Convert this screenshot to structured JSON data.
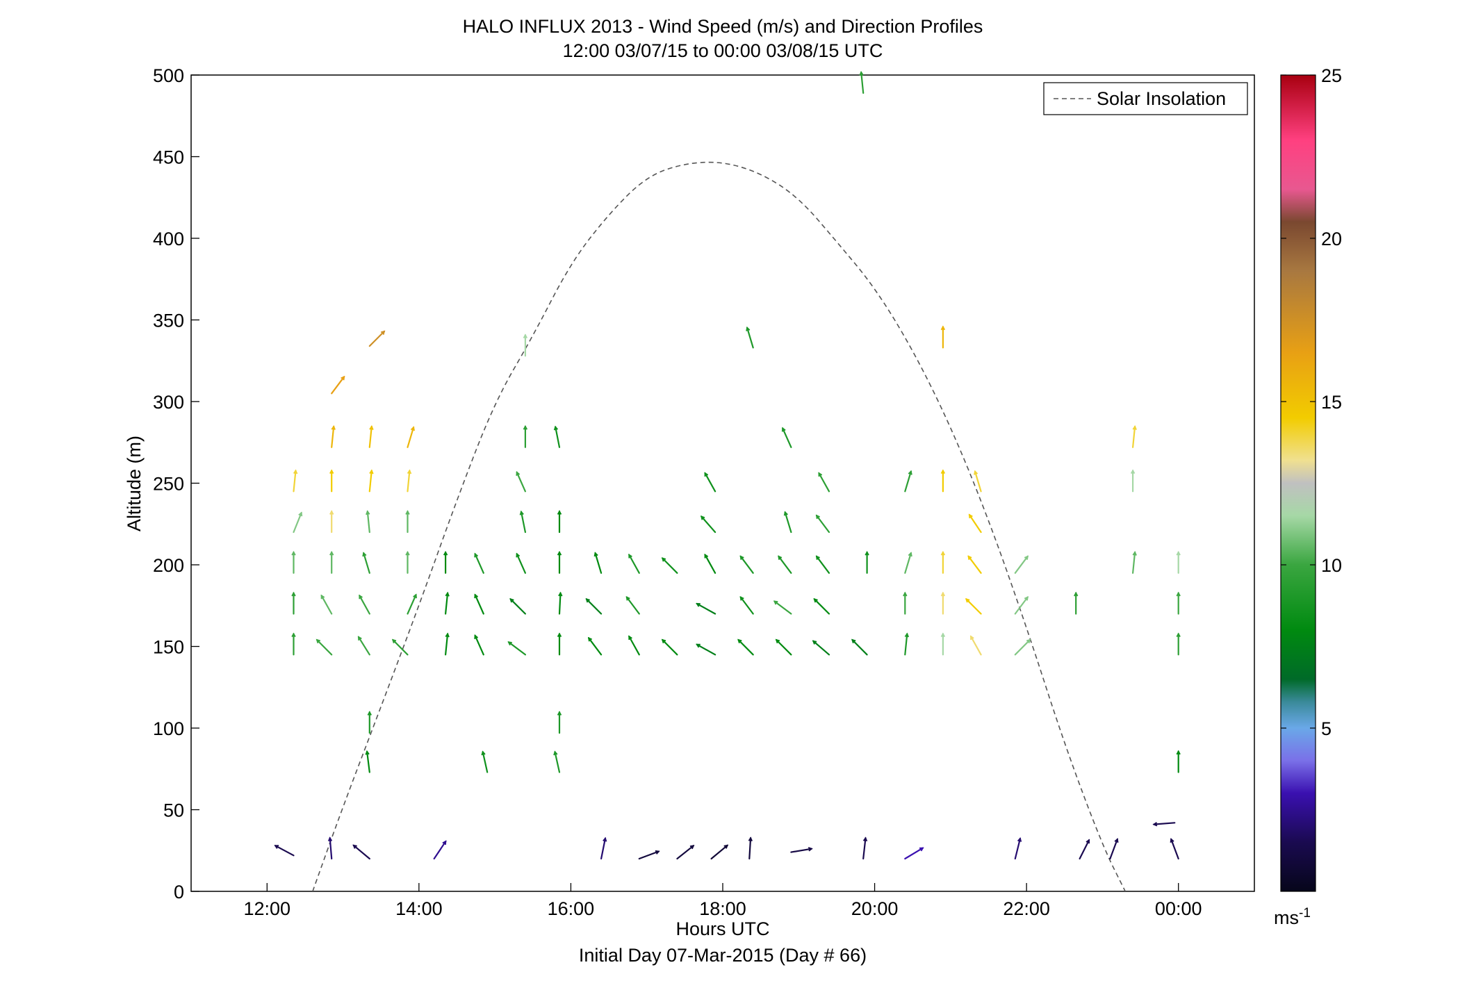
{
  "chart_data": {
    "type": "quiver",
    "title": "HALO INFLUX 2013 - Wind Speed (m/s) and Direction Profiles",
    "subtitle": "12:00 03/07/15 to 00:00 03/08/15  UTC",
    "xlabel": "Hours UTC",
    "xlabel2": "Initial Day 07-Mar-2015 (Day # 66)",
    "ylabel": "Altitude (m)",
    "xlim": [
      11,
      25
    ],
    "ylim": [
      0,
      500
    ],
    "x_ticks": [
      12,
      14,
      16,
      18,
      20,
      22,
      24
    ],
    "x_tick_labels": [
      "12:00",
      "14:00",
      "16:00",
      "18:00",
      "20:00",
      "22:00",
      "00:00"
    ],
    "y_ticks": [
      0,
      50,
      100,
      150,
      200,
      250,
      300,
      350,
      400,
      450,
      500
    ],
    "y_tick_labels": [
      "0",
      "50",
      "100",
      "150",
      "200",
      "250",
      "300",
      "350",
      "400",
      "450",
      "500"
    ],
    "grid": false,
    "legend": {
      "position": "top-right",
      "entries": [
        "Solar Insolation"
      ]
    },
    "colorbar": {
      "range": [
        0,
        25
      ],
      "ticks": [
        5,
        10,
        15,
        20,
        25
      ],
      "tick_labels": [
        "5",
        "10",
        "15",
        "20",
        "25"
      ],
      "unit_label": "ms",
      "unit_exponent": "-1",
      "stops": [
        [
          0,
          "#06061a"
        ],
        [
          1.5,
          "#1a0a50"
        ],
        [
          3,
          "#3a10b0"
        ],
        [
          4,
          "#7a70e8"
        ],
        [
          5,
          "#6aa8e8"
        ],
        [
          5.8,
          "#3a8a9a"
        ],
        [
          6.5,
          "#006a28"
        ],
        [
          8,
          "#008a10"
        ],
        [
          10,
          "#3aa640"
        ],
        [
          11.5,
          "#a6d8a6"
        ],
        [
          12.5,
          "#c0c0c0"
        ],
        [
          13.2,
          "#f0e090"
        ],
        [
          14.5,
          "#f2cc00"
        ],
        [
          16.5,
          "#e8a014"
        ],
        [
          19,
          "#a87840"
        ],
        [
          20.5,
          "#7a4830"
        ],
        [
          21.5,
          "#e85890"
        ],
        [
          23,
          "#ff4080"
        ],
        [
          25,
          "#a80010"
        ]
      ]
    },
    "solar_insolation": {
      "style": "dashed",
      "color": "#555555",
      "x": [
        12.6,
        13.0,
        13.5,
        14.0,
        14.5,
        15.0,
        15.5,
        16.0,
        16.5,
        17.0,
        17.5,
        18.0,
        18.5,
        19.0,
        19.5,
        20.0,
        20.5,
        21.0,
        21.5,
        22.0,
        22.5,
        23.0,
        23.3
      ],
      "y": [
        0,
        52,
        113,
        175,
        240,
        300,
        340,
        385,
        415,
        438,
        446,
        447,
        440,
        425,
        398,
        370,
        332,
        285,
        228,
        162,
        90,
        28,
        0
      ]
    },
    "vectors": [
      {
        "t": 12.35,
        "z": 22,
        "u": -1.5,
        "v": 0.8,
        "s": 1.5
      },
      {
        "t": 12.85,
        "z": 20,
        "u": -0.1,
        "v": 1.2,
        "s": 2.0
      },
      {
        "t": 13.35,
        "z": 20,
        "u": -1.2,
        "v": 1.0,
        "s": 1.5
      },
      {
        "t": 14.2,
        "z": 20,
        "u": 0.6,
        "v": 0.9,
        "s": 2.5
      },
      {
        "t": 16.4,
        "z": 20,
        "u": 0.2,
        "v": 1.0,
        "s": 2.0
      },
      {
        "t": 16.9,
        "z": 20,
        "u": 0.8,
        "v": 0.3,
        "s": 1.0
      },
      {
        "t": 17.4,
        "z": 20,
        "u": 0.5,
        "v": 0.4,
        "s": 1.0
      },
      {
        "t": 17.85,
        "z": 20,
        "u": 0.6,
        "v": 0.5,
        "s": 0.8
      },
      {
        "t": 18.35,
        "z": 20,
        "u": 0.05,
        "v": 0.8,
        "s": 1.0
      },
      {
        "t": 18.9,
        "z": 24,
        "u": 1.2,
        "v": 0.2,
        "s": 1.2
      },
      {
        "t": 19.85,
        "z": 20,
        "u": 0.1,
        "v": 0.9,
        "s": 1.5
      },
      {
        "t": 20.4,
        "z": 20,
        "u": 1.0,
        "v": 0.6,
        "s": 3.0
      },
      {
        "t": 21.85,
        "z": 20,
        "u": 0.2,
        "v": 0.8,
        "s": 2.0
      },
      {
        "t": 22.7,
        "z": 20,
        "u": 0.4,
        "v": 0.8,
        "s": 1.5
      },
      {
        "t": 23.1,
        "z": 20,
        "u": 0.3,
        "v": 0.8,
        "s": 1.5
      },
      {
        "t": 23.95,
        "z": 42,
        "u": -1.3,
        "v": -0.1,
        "s": 1.5
      },
      {
        "t": 24.0,
        "z": 20,
        "u": -0.3,
        "v": 0.8,
        "s": 1.5
      },
      {
        "t": 13.35,
        "z": 73,
        "u": -0.1,
        "v": 0.8,
        "s": 8.0
      },
      {
        "t": 14.9,
        "z": 73,
        "u": -0.2,
        "v": 0.9,
        "s": 8.5
      },
      {
        "t": 15.85,
        "z": 73,
        "u": -0.2,
        "v": 0.9,
        "s": 9.0
      },
      {
        "t": 24.0,
        "z": 73,
        "u": 0,
        "v": 1.0,
        "s": 8.0
      },
      {
        "t": 13.35,
        "z": 97,
        "u": 0,
        "v": 1.0,
        "s": 9.0
      },
      {
        "t": 15.85,
        "z": 97,
        "u": 0,
        "v": 1.0,
        "s": 9.0
      },
      {
        "t": 12.35,
        "z": 145,
        "u": 0,
        "v": 1.0,
        "s": 9.5
      },
      {
        "t": 12.85,
        "z": 145,
        "u": -0.7,
        "v": 0.7,
        "s": 10.0
      },
      {
        "t": 13.35,
        "z": 145,
        "u": -0.5,
        "v": 0.8,
        "s": 10.0
      },
      {
        "t": 13.85,
        "z": 145,
        "u": -0.7,
        "v": 0.7,
        "s": 9.5
      },
      {
        "t": 14.35,
        "z": 145,
        "u": 0.1,
        "v": 1.0,
        "s": 8.0
      },
      {
        "t": 14.85,
        "z": 145,
        "u": -0.4,
        "v": 0.9,
        "s": 8.0
      },
      {
        "t": 15.4,
        "z": 145,
        "u": -0.8,
        "v": 0.6,
        "s": 9.0
      },
      {
        "t": 15.85,
        "z": 145,
        "u": 0,
        "v": 1.0,
        "s": 8.0
      },
      {
        "t": 16.4,
        "z": 145,
        "u": -0.6,
        "v": 0.8,
        "s": 8.0
      },
      {
        "t": 16.9,
        "z": 145,
        "u": -0.5,
        "v": 0.9,
        "s": 8.0
      },
      {
        "t": 17.4,
        "z": 145,
        "u": -0.7,
        "v": 0.7,
        "s": 8.0
      },
      {
        "t": 17.9,
        "z": 145,
        "u": -0.9,
        "v": 0.5,
        "s": 7.5
      },
      {
        "t": 18.4,
        "z": 145,
        "u": -0.7,
        "v": 0.7,
        "s": 8.0
      },
      {
        "t": 18.9,
        "z": 145,
        "u": -0.7,
        "v": 0.7,
        "s": 8.0
      },
      {
        "t": 19.4,
        "z": 145,
        "u": -0.7,
        "v": 0.6,
        "s": 7.5
      },
      {
        "t": 19.9,
        "z": 145,
        "u": -0.7,
        "v": 0.7,
        "s": 7.5
      },
      {
        "t": 20.4,
        "z": 145,
        "u": 0.1,
        "v": 1.0,
        "s": 9.0
      },
      {
        "t": 20.9,
        "z": 145,
        "u": 0,
        "v": 1.0,
        "s": 11.5
      },
      {
        "t": 21.4,
        "z": 145,
        "u": -0.5,
        "v": 0.9,
        "s": 13.5
      },
      {
        "t": 21.85,
        "z": 145,
        "u": 0.7,
        "v": 0.7,
        "s": 11.0
      },
      {
        "t": 24.0,
        "z": 145,
        "u": 0,
        "v": 1.0,
        "s": 9.5
      },
      {
        "t": 12.35,
        "z": 170,
        "u": 0,
        "v": 1.0,
        "s": 9.5
      },
      {
        "t": 12.85,
        "z": 170,
        "u": -0.5,
        "v": 0.9,
        "s": 10.5
      },
      {
        "t": 13.35,
        "z": 170,
        "u": -0.5,
        "v": 0.9,
        "s": 10.0
      },
      {
        "t": 13.85,
        "z": 170,
        "u": 0.4,
        "v": 0.9,
        "s": 9.5
      },
      {
        "t": 14.35,
        "z": 170,
        "u": 0.1,
        "v": 1.0,
        "s": 8.0
      },
      {
        "t": 14.85,
        "z": 170,
        "u": -0.4,
        "v": 0.9,
        "s": 8.0
      },
      {
        "t": 15.4,
        "z": 170,
        "u": -0.7,
        "v": 0.7,
        "s": 7.5
      },
      {
        "t": 15.85,
        "z": 170,
        "u": 0.05,
        "v": 1.0,
        "s": 8.0
      },
      {
        "t": 16.4,
        "z": 170,
        "u": -0.7,
        "v": 0.7,
        "s": 7.5
      },
      {
        "t": 16.9,
        "z": 170,
        "u": -0.6,
        "v": 0.8,
        "s": 9.0
      },
      {
        "t": 17.9,
        "z": 170,
        "u": -0.9,
        "v": 0.5,
        "s": 7.5
      },
      {
        "t": 18.4,
        "z": 170,
        "u": -0.6,
        "v": 0.8,
        "s": 8.5
      },
      {
        "t": 18.9,
        "z": 170,
        "u": -0.8,
        "v": 0.6,
        "s": 10.0
      },
      {
        "t": 19.4,
        "z": 170,
        "u": -0.7,
        "v": 0.7,
        "s": 8.0
      },
      {
        "t": 20.4,
        "z": 170,
        "u": 0,
        "v": 1.0,
        "s": 10.0
      },
      {
        "t": 20.9,
        "z": 170,
        "u": 0,
        "v": 1.0,
        "s": 13.5
      },
      {
        "t": 21.4,
        "z": 170,
        "u": -0.7,
        "v": 0.7,
        "s": 14.5
      },
      {
        "t": 21.85,
        "z": 170,
        "u": 0.6,
        "v": 0.8,
        "s": 11.0
      },
      {
        "t": 22.65,
        "z": 170,
        "u": 0,
        "v": 1.0,
        "s": 9.5
      },
      {
        "t": 24.0,
        "z": 170,
        "u": 0,
        "v": 1.0,
        "s": 10.0
      },
      {
        "t": 12.35,
        "z": 195,
        "u": 0,
        "v": 1.0,
        "s": 10.5
      },
      {
        "t": 12.85,
        "z": 195,
        "u": 0,
        "v": 1.0,
        "s": 10.5
      },
      {
        "t": 13.35,
        "z": 195,
        "u": -0.3,
        "v": 1.0,
        "s": 9.5
      },
      {
        "t": 13.85,
        "z": 195,
        "u": 0,
        "v": 1.0,
        "s": 10.5
      },
      {
        "t": 14.35,
        "z": 195,
        "u": 0,
        "v": 1.0,
        "s": 8.0
      },
      {
        "t": 14.85,
        "z": 195,
        "u": -0.4,
        "v": 0.9,
        "s": 9.0
      },
      {
        "t": 15.4,
        "z": 195,
        "u": -0.4,
        "v": 0.9,
        "s": 8.5
      },
      {
        "t": 15.85,
        "z": 195,
        "u": 0,
        "v": 1.0,
        "s": 8.0
      },
      {
        "t": 16.4,
        "z": 195,
        "u": -0.3,
        "v": 1.0,
        "s": 8.0
      },
      {
        "t": 16.9,
        "z": 195,
        "u": -0.5,
        "v": 0.9,
        "s": 9.0
      },
      {
        "t": 17.4,
        "z": 195,
        "u": -0.7,
        "v": 0.7,
        "s": 8.5
      },
      {
        "t": 17.9,
        "z": 195,
        "u": -0.5,
        "v": 0.9,
        "s": 8.0
      },
      {
        "t": 18.4,
        "z": 195,
        "u": -0.6,
        "v": 0.8,
        "s": 9.0
      },
      {
        "t": 18.9,
        "z": 195,
        "u": -0.6,
        "v": 0.8,
        "s": 9.0
      },
      {
        "t": 19.4,
        "z": 195,
        "u": -0.6,
        "v": 0.8,
        "s": 8.5
      },
      {
        "t": 19.9,
        "z": 195,
        "u": 0,
        "v": 1.0,
        "s": 8.5
      },
      {
        "t": 20.4,
        "z": 195,
        "u": 0.3,
        "v": 1.0,
        "s": 10.5
      },
      {
        "t": 20.9,
        "z": 195,
        "u": 0,
        "v": 1.0,
        "s": 14.0
      },
      {
        "t": 21.4,
        "z": 195,
        "u": -0.6,
        "v": 0.8,
        "s": 14.5
      },
      {
        "t": 21.85,
        "z": 195,
        "u": 0.6,
        "v": 0.8,
        "s": 11.0
      },
      {
        "t": 23.4,
        "z": 195,
        "u": 0.1,
        "v": 1.0,
        "s": 10.5
      },
      {
        "t": 24.0,
        "z": 195,
        "u": 0,
        "v": 1.0,
        "s": 11.5
      },
      {
        "t": 12.35,
        "z": 220,
        "u": 0.4,
        "v": 1.0,
        "s": 11.0
      },
      {
        "t": 12.85,
        "z": 220,
        "u": 0,
        "v": 1.0,
        "s": 13.5
      },
      {
        "t": 13.35,
        "z": 220,
        "u": -0.1,
        "v": 1.0,
        "s": 10.5
      },
      {
        "t": 13.85,
        "z": 220,
        "u": 0,
        "v": 1.0,
        "s": 10.5
      },
      {
        "t": 15.4,
        "z": 220,
        "u": -0.2,
        "v": 1.0,
        "s": 9.0
      },
      {
        "t": 15.85,
        "z": 220,
        "u": 0,
        "v": 1.0,
        "s": 8.0
      },
      {
        "t": 17.9,
        "z": 220,
        "u": -0.7,
        "v": 0.8,
        "s": 8.5
      },
      {
        "t": 18.9,
        "z": 220,
        "u": -0.3,
        "v": 1.0,
        "s": 9.0
      },
      {
        "t": 19.4,
        "z": 220,
        "u": -0.6,
        "v": 0.8,
        "s": 9.5
      },
      {
        "t": 21.4,
        "z": 220,
        "u": -0.6,
        "v": 0.9,
        "s": 14.5
      },
      {
        "t": 12.35,
        "z": 245,
        "u": 0.1,
        "v": 1.0,
        "s": 14.0
      },
      {
        "t": 12.85,
        "z": 245,
        "u": 0,
        "v": 1.0,
        "s": 14.5
      },
      {
        "t": 13.35,
        "z": 245,
        "u": 0.1,
        "v": 1.0,
        "s": 14.5
      },
      {
        "t": 13.85,
        "z": 245,
        "u": 0.1,
        "v": 1.0,
        "s": 14.0
      },
      {
        "t": 15.4,
        "z": 245,
        "u": -0.4,
        "v": 0.9,
        "s": 10.0
      },
      {
        "t": 17.9,
        "z": 245,
        "u": -0.5,
        "v": 0.9,
        "s": 8.5
      },
      {
        "t": 19.4,
        "z": 245,
        "u": -0.5,
        "v": 0.9,
        "s": 9.5
      },
      {
        "t": 20.4,
        "z": 245,
        "u": 0.3,
        "v": 1.0,
        "s": 9.5
      },
      {
        "t": 20.9,
        "z": 245,
        "u": 0,
        "v": 1.0,
        "s": 14.5
      },
      {
        "t": 21.4,
        "z": 245,
        "u": -0.3,
        "v": 1.0,
        "s": 14.0
      },
      {
        "t": 23.4,
        "z": 245,
        "u": 0,
        "v": 1.0,
        "s": 11.5
      },
      {
        "t": 12.85,
        "z": 272,
        "u": 0.1,
        "v": 1.0,
        "s": 15.5
      },
      {
        "t": 13.35,
        "z": 272,
        "u": 0.1,
        "v": 1.0,
        "s": 15.0
      },
      {
        "t": 13.85,
        "z": 272,
        "u": 0.3,
        "v": 1.0,
        "s": 15.5
      },
      {
        "t": 15.4,
        "z": 272,
        "u": 0,
        "v": 1.0,
        "s": 9.5
      },
      {
        "t": 15.85,
        "z": 272,
        "u": -0.2,
        "v": 1.0,
        "s": 8.5
      },
      {
        "t": 18.9,
        "z": 272,
        "u": -0.4,
        "v": 0.9,
        "s": 9.0
      },
      {
        "t": 23.4,
        "z": 272,
        "u": 0.1,
        "v": 1.0,
        "s": 14.0
      },
      {
        "t": 12.85,
        "z": 305,
        "u": 0.6,
        "v": 0.8,
        "s": 16.5
      },
      {
        "t": 15.4,
        "z": 328,
        "u": 0,
        "v": 1.0,
        "s": 11.5
      },
      {
        "t": 18.4,
        "z": 333,
        "u": -0.3,
        "v": 1.0,
        "s": 9.0
      },
      {
        "t": 20.9,
        "z": 333,
        "u": 0,
        "v": 1.0,
        "s": 15.5
      },
      {
        "t": 13.35,
        "z": 334,
        "u": 0.7,
        "v": 0.7,
        "s": 17.5
      },
      {
        "t": 19.85,
        "z": 489,
        "u": -0.1,
        "v": 1.0,
        "s": 9.5
      }
    ]
  }
}
